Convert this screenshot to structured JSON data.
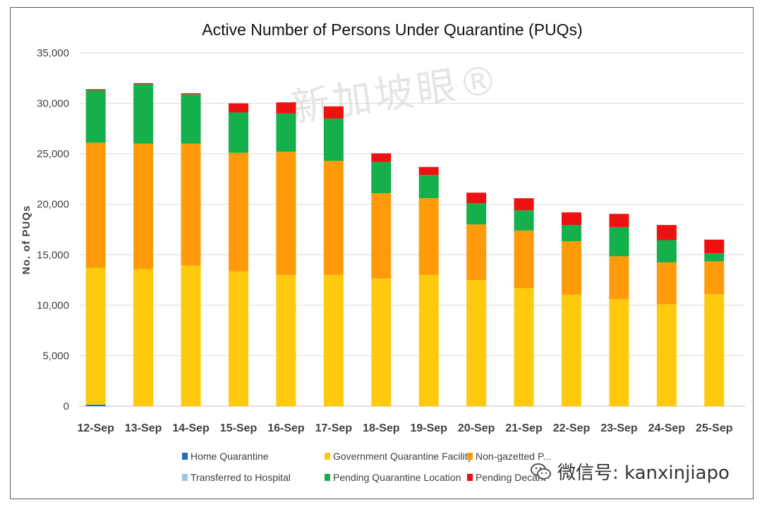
{
  "chart_data": {
    "type": "bar",
    "stacked": true,
    "title": "Active Number of Persons Under Quarantine (PUQs)",
    "xlabel": "",
    "ylabel": "No. of PUQs",
    "ylim": [
      0,
      35000
    ],
    "yticks": [
      0,
      5000,
      10000,
      15000,
      20000,
      25000,
      30000,
      35000
    ],
    "ytick_labels": [
      "0",
      "5,000",
      "10,000",
      "15,000",
      "20,000",
      "25,000",
      "30,000",
      "35,000"
    ],
    "grid": true,
    "legend_position": "bottom",
    "categories": [
      "12-Sep",
      "13-Sep",
      "14-Sep",
      "15-Sep",
      "16-Sep",
      "17-Sep",
      "18-Sep",
      "19-Sep",
      "20-Sep",
      "21-Sep",
      "22-Sep",
      "23-Sep",
      "24-Sep",
      "25-Sep"
    ],
    "series": [
      {
        "name": "Home  Quarantine",
        "color": "#1f6fbd",
        "values": [
          150,
          0,
          0,
          0,
          0,
          0,
          0,
          0,
          0,
          0,
          0,
          0,
          0,
          0
        ]
      },
      {
        "name": "Transferred to Hospital",
        "color": "#9dc3e6",
        "values": [
          0,
          0,
          0,
          0,
          0,
          0,
          0,
          0,
          0,
          0,
          0,
          0,
          0,
          0
        ]
      },
      {
        "name": "Government Quarantine Facility",
        "color": "#ffc90e",
        "values": [
          13550,
          13600,
          13950,
          13350,
          13000,
          13000,
          12650,
          13000,
          12500,
          11700,
          11050,
          10600,
          10100,
          11100
        ]
      },
      {
        "name": "Non-gazetted P...",
        "color": "#ff9a0a",
        "values": [
          12400,
          12400,
          12050,
          11750,
          12200,
          11300,
          8450,
          7600,
          5500,
          5700,
          5300,
          4250,
          4150,
          3250
        ]
      },
      {
        "name": "Pending Quarantine Location",
        "color": "#13b04b",
        "values": [
          5200,
          5900,
          4900,
          4000,
          3800,
          4200,
          3100,
          2300,
          2100,
          2000,
          1600,
          2900,
          2200,
          800
        ]
      },
      {
        "name": "Pending Decant",
        "color": "#ee1111",
        "values": [
          100,
          100,
          100,
          900,
          1100,
          1200,
          850,
          800,
          1050,
          1200,
          1250,
          1300,
          1500,
          1350
        ]
      }
    ],
    "legend_rows": [
      [
        "Home  Quarantine",
        "Government Quarantine Facility",
        "Non-gazetted P..."
      ],
      [
        "Transferred to Hospital",
        "Pending Quarantine Location",
        "Pending Decant"
      ]
    ]
  },
  "watermark": {
    "text": "新加坡眼®"
  },
  "wechat": {
    "label": "微信号: kanxinjiapo"
  }
}
